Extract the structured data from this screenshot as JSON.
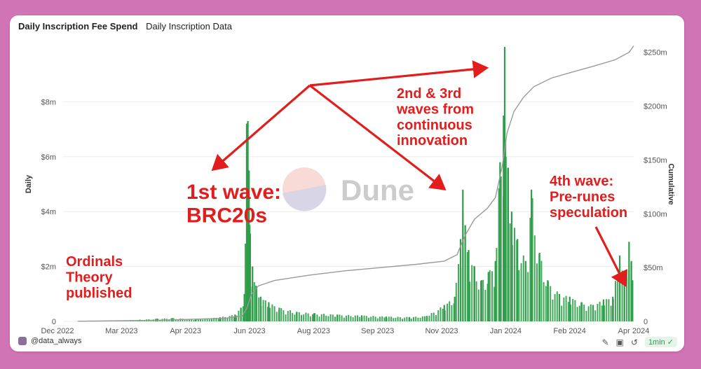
{
  "header": {
    "tabs": [
      {
        "label": "Daily Inscription Fee Spend"
      },
      {
        "label": "Daily Inscription Data"
      }
    ]
  },
  "footer": {
    "user": "@data_always",
    "refresh": "1min"
  },
  "icons": [
    "camera-icon",
    "screenshot-icon",
    "refresh-icon",
    "check-icon",
    "edit-icon"
  ],
  "colors": {
    "bars": "#2e9e48",
    "cumulative_line": "#9a9a9a",
    "annotation": "#e11d1d",
    "background": "#d174b6"
  },
  "watermark": "Dune",
  "chart_data": {
    "type": "bar",
    "ylabel": "Daily",
    "y2label": "Cumulative",
    "ylim": [
      0,
      10000000
    ],
    "y2lim": [
      0,
      255000000
    ],
    "y_ticks": [
      "0",
      "$2m",
      "$4m",
      "$6m",
      "$8m"
    ],
    "y2_ticks": [
      "0",
      "$50m",
      "$100m",
      "$150m",
      "$200m",
      "$250m"
    ],
    "x_ticks": [
      "Dec 2022",
      "Mar 2023",
      "Apr 2023",
      "Jun 2023",
      "Aug 2023",
      "Sep 2023",
      "Nov 2023",
      "Jan 2024",
      "Feb 2024",
      "Apr 2024"
    ],
    "grid": true,
    "x_range": [
      "2022-12-01",
      "2024-04-05"
    ],
    "series": [
      {
        "name": "Daily",
        "type": "bar",
        "points": [
          [
            "2022-12-14",
            0.01
          ],
          [
            "2023-01-10",
            0.02
          ],
          [
            "2023-02-05",
            0.06
          ],
          [
            "2023-02-20",
            0.1
          ],
          [
            "2023-03-05",
            0.12
          ],
          [
            "2023-03-25",
            0.08
          ],
          [
            "2023-04-15",
            0.15
          ],
          [
            "2023-04-28",
            0.25
          ],
          [
            "2023-05-03",
            0.5
          ],
          [
            "2023-05-06",
            1.0
          ],
          [
            "2023-05-08",
            7.2
          ],
          [
            "2023-05-09",
            7.3
          ],
          [
            "2023-05-10",
            5.5
          ],
          [
            "2023-05-11",
            3.2
          ],
          [
            "2023-05-13",
            2.0
          ],
          [
            "2023-05-16",
            1.3
          ],
          [
            "2023-05-20",
            0.9
          ],
          [
            "2023-05-27",
            0.7
          ],
          [
            "2023-06-05",
            0.5
          ],
          [
            "2023-06-20",
            0.35
          ],
          [
            "2023-07-05",
            0.3
          ],
          [
            "2023-07-25",
            0.25
          ],
          [
            "2023-08-15",
            0.22
          ],
          [
            "2023-09-05",
            0.18
          ],
          [
            "2023-09-25",
            0.16
          ],
          [
            "2023-10-10",
            0.2
          ],
          [
            "2023-10-25",
            0.6
          ],
          [
            "2023-11-03",
            0.9
          ],
          [
            "2023-11-08",
            3.0
          ],
          [
            "2023-11-10",
            4.8
          ],
          [
            "2023-11-12",
            3.5
          ],
          [
            "2023-11-15",
            2.6
          ],
          [
            "2023-11-20",
            2.0
          ],
          [
            "2023-11-26",
            1.5
          ],
          [
            "2023-12-02",
            1.8
          ],
          [
            "2023-12-08",
            2.2
          ],
          [
            "2023-12-12",
            5.8
          ],
          [
            "2023-12-15",
            7.5
          ],
          [
            "2023-12-16",
            10.0
          ],
          [
            "2023-12-17",
            6.0
          ],
          [
            "2023-12-19",
            5.6
          ],
          [
            "2023-12-22",
            4.0
          ],
          [
            "2023-12-27",
            3.0
          ],
          [
            "2024-01-03",
            2.2
          ],
          [
            "2024-01-08",
            4.8
          ],
          [
            "2024-01-15",
            2.5
          ],
          [
            "2024-01-22",
            1.5
          ],
          [
            "2024-02-01",
            1.0
          ],
          [
            "2024-02-10",
            0.9
          ],
          [
            "2024-02-20",
            0.7
          ],
          [
            "2024-03-01",
            0.6
          ],
          [
            "2024-03-10",
            0.8
          ],
          [
            "2024-03-18",
            0.9
          ],
          [
            "2024-03-24",
            2.4
          ],
          [
            "2024-03-28",
            1.8
          ],
          [
            "2024-04-01",
            2.9
          ],
          [
            "2024-04-03",
            2.2
          ],
          [
            "2024-04-04",
            1.5
          ]
        ]
      },
      {
        "name": "Cumulative",
        "type": "line",
        "axis": "y2",
        "points": [
          [
            "2022-12-14",
            0.1
          ],
          [
            "2023-02-20",
            1
          ],
          [
            "2023-04-20",
            3
          ],
          [
            "2023-05-04",
            5
          ],
          [
            "2023-05-08",
            12
          ],
          [
            "2023-05-12",
            25
          ],
          [
            "2023-05-18",
            33
          ],
          [
            "2023-06-01",
            38
          ],
          [
            "2023-07-01",
            43
          ],
          [
            "2023-08-01",
            47
          ],
          [
            "2023-09-01",
            50
          ],
          [
            "2023-10-01",
            53
          ],
          [
            "2023-10-25",
            56
          ],
          [
            "2023-11-05",
            62
          ],
          [
            "2023-11-12",
            80
          ],
          [
            "2023-11-20",
            95
          ],
          [
            "2023-12-01",
            105
          ],
          [
            "2023-12-08",
            115
          ],
          [
            "2023-12-14",
            145
          ],
          [
            "2023-12-18",
            175
          ],
          [
            "2023-12-24",
            195
          ],
          [
            "2024-01-01",
            208
          ],
          [
            "2024-01-10",
            218
          ],
          [
            "2024-01-25",
            226
          ],
          [
            "2024-02-10",
            231
          ],
          [
            "2024-03-01",
            237
          ],
          [
            "2024-03-20",
            243
          ],
          [
            "2024-04-01",
            250
          ],
          [
            "2024-04-05",
            256
          ]
        ]
      }
    ],
    "annotations": [
      {
        "text": "Ordinals Theory published"
      },
      {
        "text": "1st wave: BRC20s"
      },
      {
        "text": "2nd & 3rd waves from continuous innovation"
      },
      {
        "text": "4th wave: Pre-runes speculation"
      }
    ]
  }
}
